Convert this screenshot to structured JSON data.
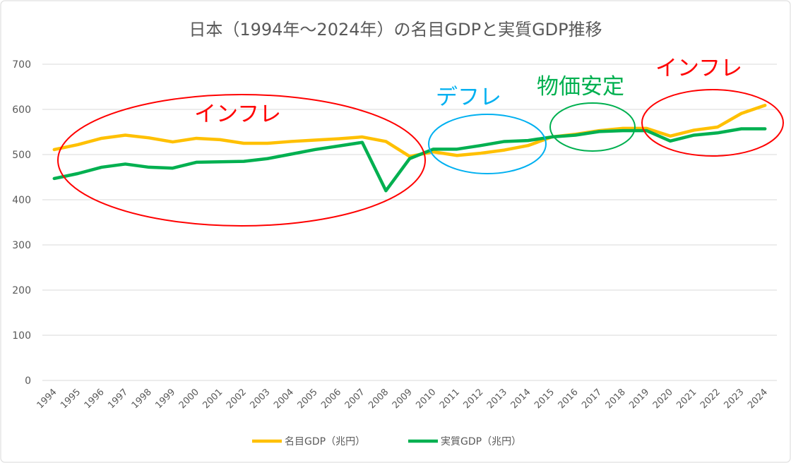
{
  "chart_data": {
    "type": "line",
    "title": "日本（1994年～2024年）の名目GDPと実質GDP推移",
    "xlabel": "",
    "ylabel": "",
    "ylim": [
      0,
      700
    ],
    "yticks": [
      "0",
      "100",
      "200",
      "300",
      "400",
      "500",
      "600",
      "700"
    ],
    "grid": true,
    "legend_position": "bottom",
    "categories": [
      "1994",
      "1995",
      "1996",
      "1997",
      "1998",
      "1999",
      "2000",
      "2001",
      "2002",
      "2003",
      "2004",
      "2005",
      "2006",
      "2007",
      "2008",
      "2009",
      "2010",
      "2011",
      "2012",
      "2013",
      "2014",
      "2015",
      "2016",
      "2017",
      "2018",
      "2019",
      "2020",
      "2021",
      "2022",
      "2023",
      "2024"
    ],
    "series": [
      {
        "name": "名目GDP（兆円）",
        "color": "#FFC000",
        "values": [
          511,
          522,
          536,
          543,
          537,
          528,
          536,
          533,
          525,
          525,
          529,
          532,
          535,
          539,
          529,
          496,
          506,
          498,
          503,
          510,
          520,
          539,
          545,
          553,
          558,
          558,
          541,
          554,
          561,
          591,
          609
        ]
      },
      {
        "name": "実質GDP（兆円）",
        "color": "#00B050",
        "values": [
          447,
          458,
          472,
          479,
          472,
          470,
          483,
          484,
          485,
          491,
          501,
          511,
          519,
          527,
          420,
          491,
          512,
          512,
          520,
          529,
          531,
          539,
          543,
          551,
          553,
          553,
          530,
          543,
          548,
          557,
          557
        ]
      }
    ],
    "annotations": [
      {
        "text": "インフレ",
        "color": "#FF0000",
        "years": "1994-2009"
      },
      {
        "text": "デフレ",
        "color": "#00B0F0",
        "years": "2010-2014"
      },
      {
        "text": "物価安定",
        "color": "#00B050",
        "years": "2015-2019"
      },
      {
        "text": "インフレ",
        "color": "#FF0000",
        "years": "2020-2024"
      }
    ]
  }
}
